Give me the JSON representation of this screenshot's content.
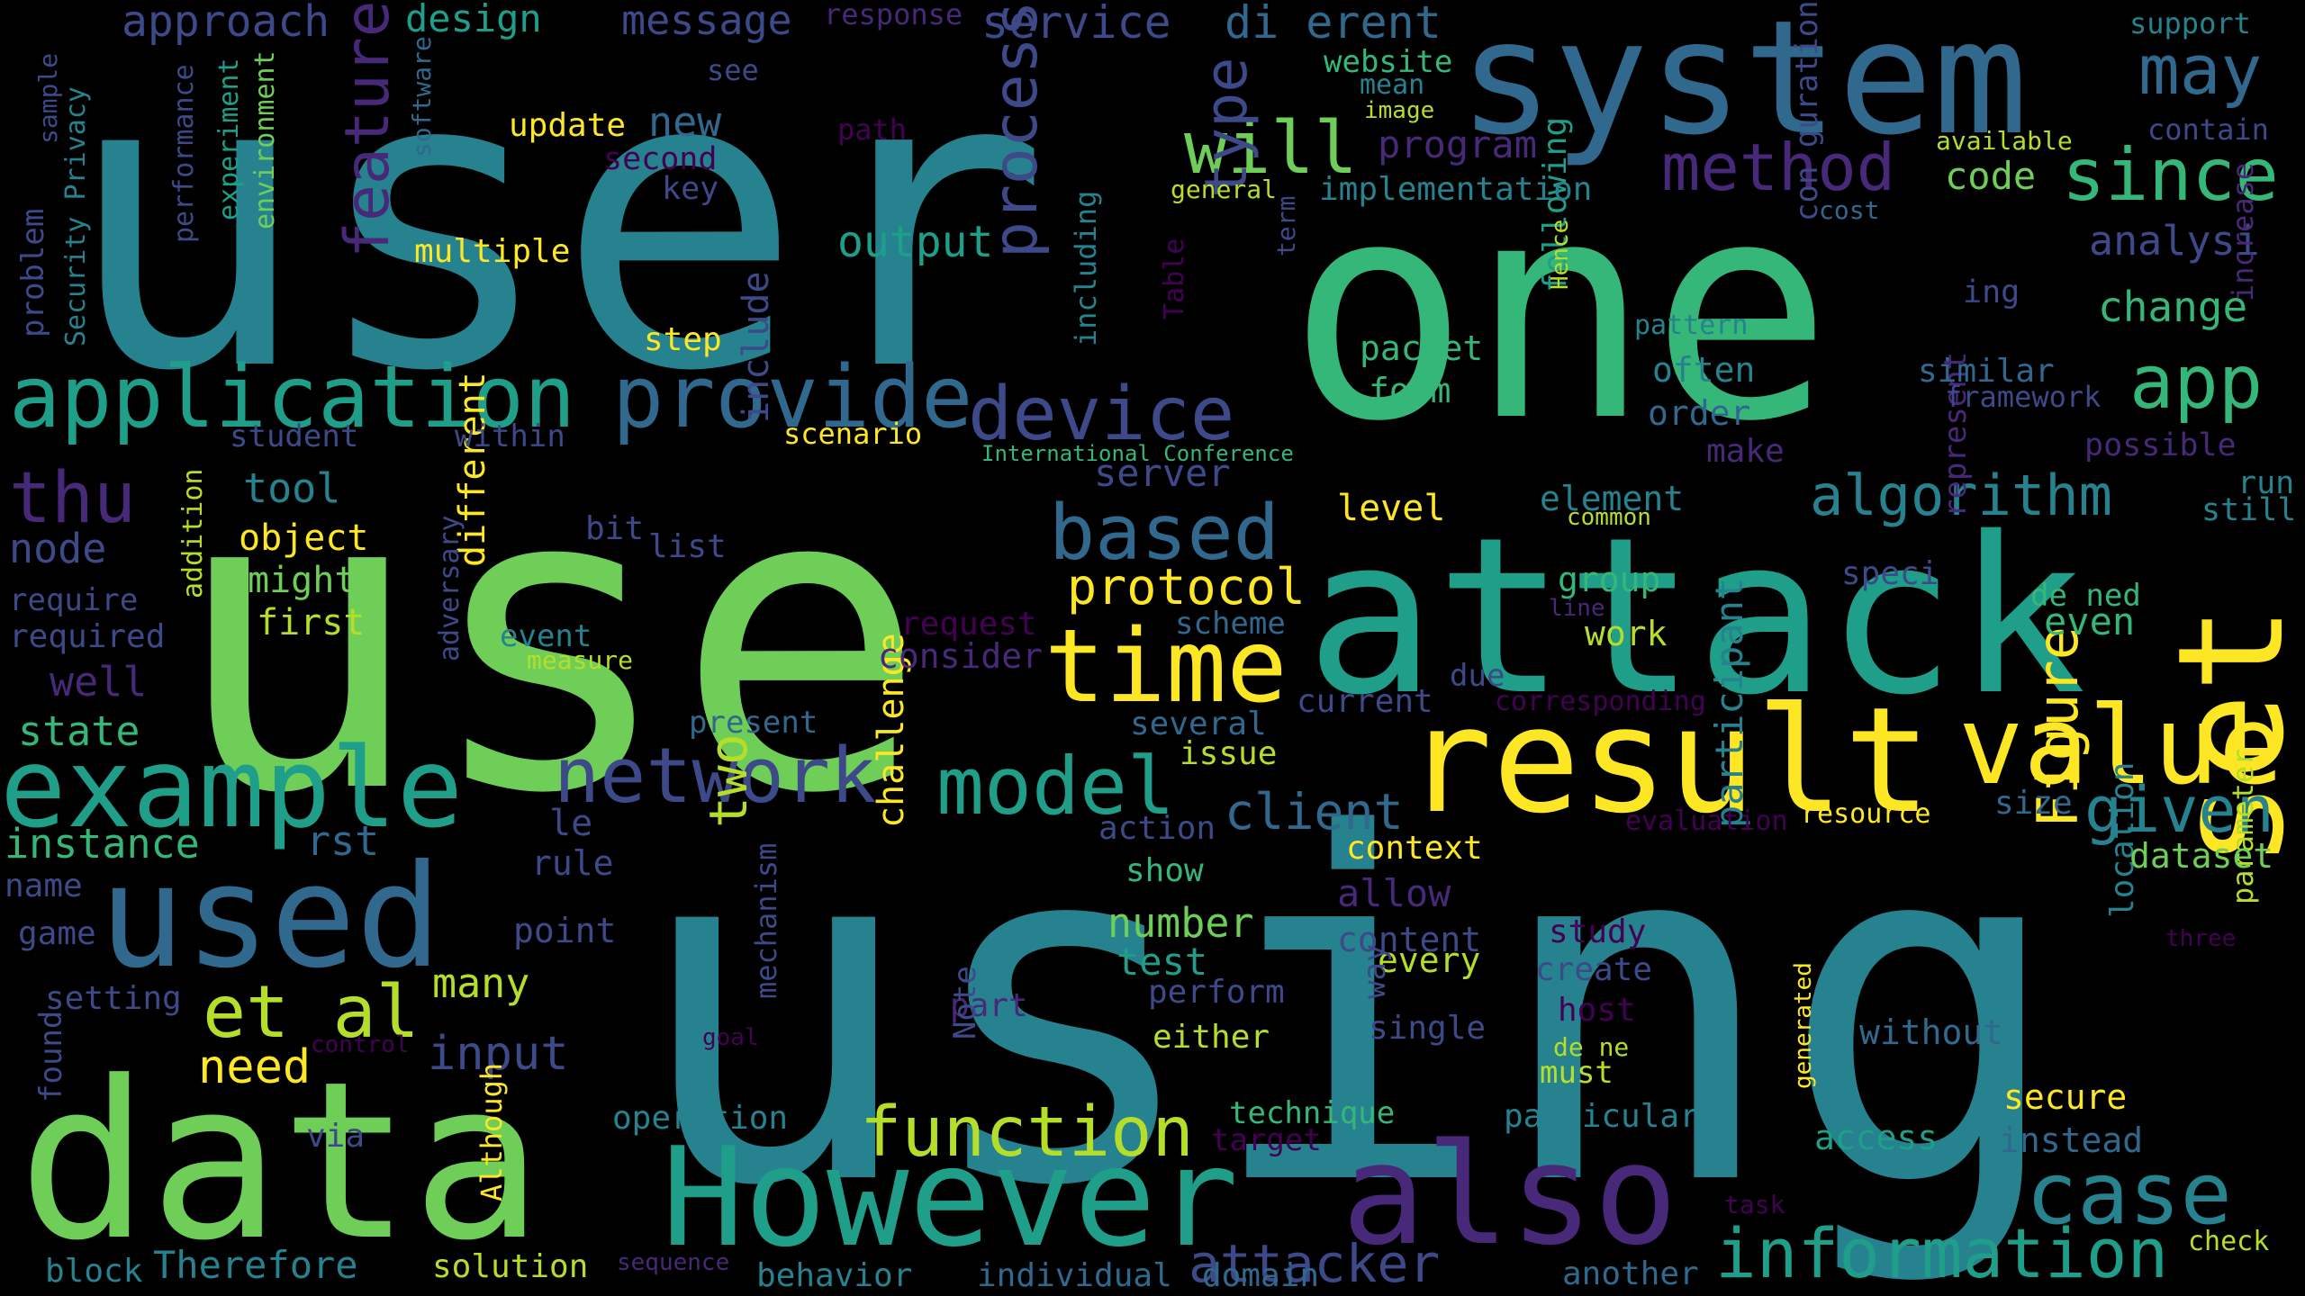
{
  "palette": {
    "background": "#000000",
    "colors": [
      "#440154",
      "#482878",
      "#3e4989",
      "#31688e",
      "#26828e",
      "#1f9e89",
      "#35b779",
      "#6ece58",
      "#b5de2b",
      "#fde725"
    ]
  },
  "words": [
    {
      "text": "user",
      "color": "#26828e"
    },
    {
      "text": "use",
      "color": "#6ece58"
    },
    {
      "text": "one",
      "color": "#35b779"
    },
    {
      "text": "using",
      "color": "#26828e"
    },
    {
      "text": "system",
      "color": "#31688e"
    },
    {
      "text": "attack",
      "color": "#1f9e89"
    },
    {
      "text": "data",
      "color": "#6ece58"
    },
    {
      "text": "result",
      "color": "#fde725"
    },
    {
      "text": "However",
      "color": "#1f9e89"
    },
    {
      "text": "also",
      "color": "#482878"
    },
    {
      "text": "set",
      "color": "#fde725"
    },
    {
      "text": "value",
      "color": "#fde725"
    },
    {
      "text": "used",
      "color": "#31688e"
    },
    {
      "text": "example",
      "color": "#1f9e89"
    },
    {
      "text": "time",
      "color": "#fde725"
    },
    {
      "text": "application",
      "color": "#1f9e89"
    },
    {
      "text": "provide",
      "color": "#31688e"
    },
    {
      "text": "device",
      "color": "#3e4989"
    },
    {
      "text": "network",
      "color": "#3e4989"
    },
    {
      "text": "model",
      "color": "#1f9e89"
    },
    {
      "text": "information",
      "color": "#1f9e89"
    },
    {
      "text": "function",
      "color": "#b5de2b"
    },
    {
      "text": "case",
      "color": "#26828e"
    },
    {
      "text": "et al",
      "color": "#b5de2b"
    },
    {
      "text": "based",
      "color": "#31688e"
    },
    {
      "text": "may",
      "color": "#31688e"
    },
    {
      "text": "since",
      "color": "#35b779"
    },
    {
      "text": "app",
      "color": "#35b779"
    },
    {
      "text": "method",
      "color": "#482878"
    },
    {
      "text": "thu",
      "color": "#482878"
    },
    {
      "text": "will",
      "color": "#6ece58"
    },
    {
      "text": "feature",
      "color": "#482878"
    },
    {
      "text": "process",
      "color": "#3e4989"
    },
    {
      "text": "type",
      "color": "#3e4989"
    },
    {
      "text": "algorithm",
      "color": "#26828e"
    },
    {
      "text": "given",
      "color": "#26828e"
    },
    {
      "text": "Figure",
      "color": "#fde725"
    },
    {
      "text": "two",
      "color": "#b5de2b"
    },
    {
      "text": "attacker",
      "color": "#3e4989"
    },
    {
      "text": "protocol",
      "color": "#fde725"
    },
    {
      "text": "client",
      "color": "#31688e"
    },
    {
      "text": "need",
      "color": "#fde725"
    },
    {
      "text": "input",
      "color": "#3e4989"
    },
    {
      "text": "change",
      "color": "#35b779"
    },
    {
      "text": "analysi",
      "color": "#3e4989"
    },
    {
      "text": "output",
      "color": "#1f9e89"
    },
    {
      "text": "new",
      "color": "#31688e"
    },
    {
      "text": "service",
      "color": "#3e4989"
    },
    {
      "text": "di erent",
      "color": "#31688e"
    },
    {
      "text": "message",
      "color": "#3e4989"
    },
    {
      "text": "approach",
      "color": "#3e4989"
    },
    {
      "text": "design",
      "color": "#1f9e89"
    },
    {
      "text": "code",
      "color": "#6ece58"
    },
    {
      "text": "program",
      "color": "#482878"
    },
    {
      "text": "instance",
      "color": "#35b779"
    },
    {
      "text": "state",
      "color": "#35b779"
    },
    {
      "text": "well",
      "color": "#482878"
    },
    {
      "text": "node",
      "color": "#3e4989"
    },
    {
      "text": "tool",
      "color": "#26828e"
    },
    {
      "text": "object",
      "color": "#fde725"
    },
    {
      "text": "might",
      "color": "#6ece58"
    },
    {
      "text": "first",
      "color": "#b5de2b"
    },
    {
      "text": "different",
      "color": "#fde725"
    },
    {
      "text": "challenge",
      "color": "#fde725"
    },
    {
      "text": "many",
      "color": "#b5de2b"
    },
    {
      "text": "number",
      "color": "#6ece58"
    },
    {
      "text": "test",
      "color": "#1f9e89"
    },
    {
      "text": "allow",
      "color": "#482878"
    },
    {
      "text": "content",
      "color": "#3e4989"
    },
    {
      "text": "every",
      "color": "#b5de2b"
    },
    {
      "text": "level",
      "color": "#fde725"
    },
    {
      "text": "server",
      "color": "#3e4989"
    },
    {
      "text": "include",
      "color": "#3e4989"
    },
    {
      "text": "participant",
      "color": "#26828e"
    },
    {
      "text": "location",
      "color": "#26828e"
    },
    {
      "text": "parameter",
      "color": "#b5de2b"
    },
    {
      "text": "dataset",
      "color": "#6ece58"
    },
    {
      "text": "size",
      "color": "#31688e"
    },
    {
      "text": "secure",
      "color": "#fde725"
    },
    {
      "text": "access",
      "color": "#1f9e89"
    },
    {
      "text": "instead",
      "color": "#31688e"
    },
    {
      "text": "without",
      "color": "#31688e"
    },
    {
      "text": "check",
      "color": "#b5de2b"
    },
    {
      "text": "run",
      "color": "#26828e"
    },
    {
      "text": "still",
      "color": "#26828e"
    },
    {
      "text": "even",
      "color": "#35b779"
    },
    {
      "text": "de ned",
      "color": "#35b779"
    },
    {
      "text": "speci",
      "color": "#3e4989"
    },
    {
      "text": "represent",
      "color": "#482878"
    },
    {
      "text": "group",
      "color": "#35b779"
    },
    {
      "text": "work",
      "color": "#b5de2b"
    },
    {
      "text": "element",
      "color": "#26828e"
    },
    {
      "text": "common",
      "color": "#b5de2b"
    },
    {
      "text": "line",
      "color": "#482878"
    },
    {
      "text": "make",
      "color": "#482878"
    },
    {
      "text": "order",
      "color": "#31688e"
    },
    {
      "text": "often",
      "color": "#26828e"
    },
    {
      "text": "pattern",
      "color": "#26828e"
    },
    {
      "text": "following",
      "color": "#1f9e89"
    },
    {
      "text": "con guration",
      "color": "#3e4989"
    },
    {
      "text": "similar",
      "color": "#31688e"
    },
    {
      "text": "framework",
      "color": "#3e4989"
    },
    {
      "text": "possible",
      "color": "#482878"
    },
    {
      "text": "increase",
      "color": "#482878"
    },
    {
      "text": "ing",
      "color": "#3e4989"
    },
    {
      "text": "cost",
      "color": "#31688e"
    },
    {
      "text": "contain",
      "color": "#3e4989"
    },
    {
      "text": "available",
      "color": "#b5de2b"
    },
    {
      "text": "support",
      "color": "#26828e"
    },
    {
      "text": "packet",
      "color": "#35b779"
    },
    {
      "text": "form",
      "color": "#35b779"
    },
    {
      "text": "implementation",
      "color": "#26828e"
    },
    {
      "text": "general",
      "color": "#b5de2b"
    },
    {
      "text": "term",
      "color": "#3e4989"
    },
    {
      "text": "Hence",
      "color": "#b5de2b"
    },
    {
      "text": "website",
      "color": "#35b779"
    },
    {
      "text": "mean",
      "color": "#26828e"
    },
    {
      "text": "image",
      "color": "#b5de2b"
    },
    {
      "text": "response",
      "color": "#482878"
    },
    {
      "text": "see",
      "color": "#3e4989"
    },
    {
      "text": "update",
      "color": "#fde725"
    },
    {
      "text": "path",
      "color": "#440154"
    },
    {
      "text": "second",
      "color": "#440154"
    },
    {
      "text": "key",
      "color": "#3e4989"
    },
    {
      "text": "including",
      "color": "#26828e"
    },
    {
      "text": "Table",
      "color": "#440154"
    },
    {
      "text": "multiple",
      "color": "#fde725"
    },
    {
      "text": "step",
      "color": "#fde725"
    },
    {
      "text": "scenario",
      "color": "#fde725"
    },
    {
      "text": "International Conference",
      "color": "#35b779"
    },
    {
      "text": "student",
      "color": "#3e4989"
    },
    {
      "text": "within",
      "color": "#3e4989"
    },
    {
      "text": "bit",
      "color": "#3e4989"
    },
    {
      "text": "list",
      "color": "#3e4989"
    },
    {
      "text": "addition",
      "color": "#b5de2b"
    },
    {
      "text": "require",
      "color": "#3e4989"
    },
    {
      "text": "required",
      "color": "#3e4989"
    },
    {
      "text": "adversary",
      "color": "#3e4989"
    },
    {
      "text": "event",
      "color": "#26828e"
    },
    {
      "text": "measure",
      "color": "#b5de2b"
    },
    {
      "text": "request",
      "color": "#440154"
    },
    {
      "text": "consider",
      "color": "#482878"
    },
    {
      "text": "scheme",
      "color": "#31688e"
    },
    {
      "text": "present",
      "color": "#31688e"
    },
    {
      "text": "due",
      "color": "#3e4989"
    },
    {
      "text": "current",
      "color": "#3e4989"
    },
    {
      "text": "corresponding",
      "color": "#440154"
    },
    {
      "text": "several",
      "color": "#31688e"
    },
    {
      "text": "issue",
      "color": "#b5de2b"
    },
    {
      "text": "action",
      "color": "#3e4989"
    },
    {
      "text": "context",
      "color": "#fde725"
    },
    {
      "text": "evaluation",
      "color": "#440154"
    },
    {
      "text": "resource",
      "color": "#fde725"
    },
    {
      "text": "le",
      "color": "#3e4989"
    },
    {
      "text": "rule",
      "color": "#3e4989"
    },
    {
      "text": "rst",
      "color": "#31688e"
    },
    {
      "text": "name",
      "color": "#3e4989"
    },
    {
      "text": "game",
      "color": "#3e4989"
    },
    {
      "text": "point",
      "color": "#3e4989"
    },
    {
      "text": "mechanism",
      "color": "#3e4989"
    },
    {
      "text": "setting",
      "color": "#3e4989"
    },
    {
      "text": "found",
      "color": "#3e4989"
    },
    {
      "text": "control",
      "color": "#440154"
    },
    {
      "text": "goal",
      "color": "#440154"
    },
    {
      "text": "Although",
      "color": "#fde725"
    },
    {
      "text": "via",
      "color": "#3e4989"
    },
    {
      "text": "operation",
      "color": "#26828e"
    },
    {
      "text": "show",
      "color": "#35b779"
    },
    {
      "text": "perform",
      "color": "#3e4989"
    },
    {
      "text": "either",
      "color": "#b5de2b"
    },
    {
      "text": "part",
      "color": "#482878"
    },
    {
      "text": "Note",
      "color": "#3e4989"
    },
    {
      "text": "way",
      "color": "#3e4989"
    },
    {
      "text": "single",
      "color": "#3e4989"
    },
    {
      "text": "study",
      "color": "#440154"
    },
    {
      "text": "create",
      "color": "#3e4989"
    },
    {
      "text": "host",
      "color": "#440154"
    },
    {
      "text": "de ne",
      "color": "#b5de2b"
    },
    {
      "text": "must",
      "color": "#b5de2b"
    },
    {
      "text": "generated",
      "color": "#fde725"
    },
    {
      "text": "technique",
      "color": "#35b779"
    },
    {
      "text": "target",
      "color": "#440154"
    },
    {
      "text": "particular",
      "color": "#26828e"
    },
    {
      "text": "task",
      "color": "#440154"
    },
    {
      "text": "three",
      "color": "#440154"
    },
    {
      "text": "block",
      "color": "#26828e"
    },
    {
      "text": "Therefore",
      "color": "#26828e"
    },
    {
      "text": "solution",
      "color": "#b5de2b"
    },
    {
      "text": "sequence",
      "color": "#482878"
    },
    {
      "text": "behavior",
      "color": "#26828e"
    },
    {
      "text": "individual",
      "color": "#31688e"
    },
    {
      "text": "domain",
      "color": "#31688e"
    },
    {
      "text": "another",
      "color": "#31688e"
    },
    {
      "text": "problem",
      "color": "#3e4989"
    },
    {
      "text": "sample",
      "color": "#3e4989"
    },
    {
      "text": "Security Privacy",
      "color": "#26828e"
    },
    {
      "text": "performance",
      "color": "#3e4989"
    },
    {
      "text": "experiment",
      "color": "#1f9e89"
    },
    {
      "text": "environment",
      "color": "#6ece58"
    },
    {
      "text": "software",
      "color": "#31688e"
    }
  ]
}
